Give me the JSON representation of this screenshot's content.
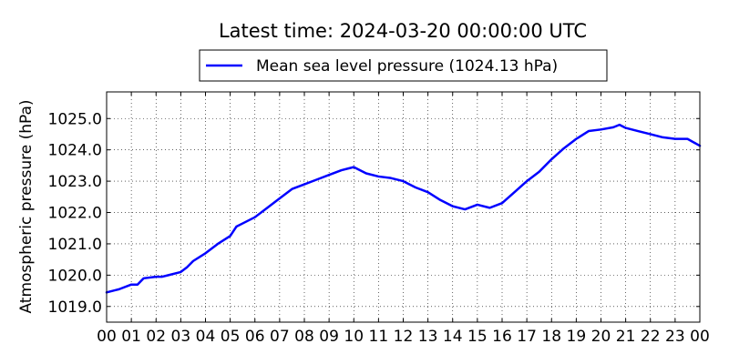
{
  "chart_data": {
    "type": "line",
    "title": "Latest time: 2024-03-20 00:00:00 UTC",
    "xlabel": "",
    "ylabel": "Atmospheric pressure (hPa)",
    "xlim": [
      0,
      24
    ],
    "ylim": [
      1018.5,
      1025.85
    ],
    "grid": true,
    "legend_position": "top-center",
    "x_tick_labels": [
      "00",
      "01",
      "02",
      "03",
      "04",
      "05",
      "06",
      "07",
      "08",
      "09",
      "10",
      "11",
      "12",
      "13",
      "14",
      "15",
      "16",
      "17",
      "18",
      "19",
      "20",
      "21",
      "22",
      "23",
      "00"
    ],
    "y_tick_labels": [
      "1019.0",
      "1020.0",
      "1021.0",
      "1022.0",
      "1023.0",
      "1024.0",
      "1025.0"
    ],
    "y_tick_values": [
      1019,
      1020,
      1021,
      1022,
      1023,
      1024,
      1025
    ],
    "series": [
      {
        "name": "Mean sea level pressure (1024.13 hPa)",
        "color": "#0000ff",
        "x": [
          0,
          0.5,
          1,
          1.25,
          1.5,
          2,
          2.25,
          2.5,
          3,
          3.25,
          3.5,
          4,
          4.5,
          5,
          5.25,
          5.5,
          6,
          6.5,
          7,
          7.5,
          8,
          8.5,
          9,
          9.5,
          10,
          10.5,
          11,
          11.5,
          12,
          12.5,
          13,
          13.5,
          14,
          14.5,
          15,
          15.5,
          16,
          16.5,
          17,
          17.5,
          18,
          18.5,
          19,
          19.5,
          20,
          20.5,
          20.75,
          21,
          21.5,
          22,
          22.5,
          23,
          23.5,
          24
        ],
        "y": [
          1019.45,
          1019.55,
          1019.7,
          1019.7,
          1019.9,
          1019.95,
          1019.95,
          1020.0,
          1020.1,
          1020.25,
          1020.45,
          1020.7,
          1021.0,
          1021.25,
          1021.55,
          1021.65,
          1021.85,
          1022.15,
          1022.45,
          1022.75,
          1022.9,
          1023.05,
          1023.2,
          1023.35,
          1023.45,
          1023.25,
          1023.15,
          1023.1,
          1023.0,
          1022.8,
          1022.65,
          1022.4,
          1022.2,
          1022.1,
          1022.25,
          1022.15,
          1022.3,
          1022.65,
          1023.0,
          1023.3,
          1023.7,
          1024.05,
          1024.35,
          1024.6,
          1024.65,
          1024.72,
          1024.8,
          1024.7,
          1024.6,
          1024.5,
          1024.4,
          1024.35,
          1024.35,
          1024.13
        ]
      }
    ]
  }
}
